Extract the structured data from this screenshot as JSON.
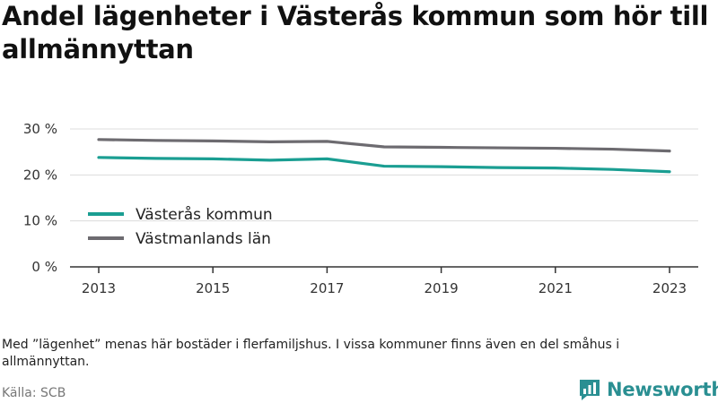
{
  "title": "Andel lägenheter i Västerås kommun som hör till allmännyttan",
  "note": "Med ”lägenhet” menas här bostäder i flerfamiljshus. I vissa kommuner finns även en del småhus i allmännyttan.",
  "source": "Källa: SCB",
  "brand": {
    "name": "Newsworthy",
    "logo_icon": "bar-chart-bubble-icon",
    "color": "#2a8f92"
  },
  "chart_data": {
    "type": "line",
    "x": [
      2013,
      2014,
      2015,
      2016,
      2017,
      2018,
      2019,
      2020,
      2021,
      2022,
      2023
    ],
    "xticks": [
      "2013",
      "2015",
      "2017",
      "2019",
      "2021",
      "2023"
    ],
    "yticks": [
      "0 %",
      "10 %",
      "20 %",
      "30 %"
    ],
    "ylim": [
      0,
      30
    ],
    "grid": true,
    "legend_position": "bottom-left",
    "series": [
      {
        "name": "Västerås kommun",
        "color": "#1a9e92",
        "values": [
          23.8,
          23.6,
          23.5,
          23.2,
          23.5,
          21.9,
          21.8,
          21.6,
          21.5,
          21.2,
          20.7
        ]
      },
      {
        "name": "Västmanlands län",
        "color": "#6d6b70",
        "values": [
          27.7,
          27.5,
          27.4,
          27.2,
          27.3,
          26.1,
          26.0,
          25.9,
          25.8,
          25.6,
          25.2
        ]
      }
    ]
  }
}
